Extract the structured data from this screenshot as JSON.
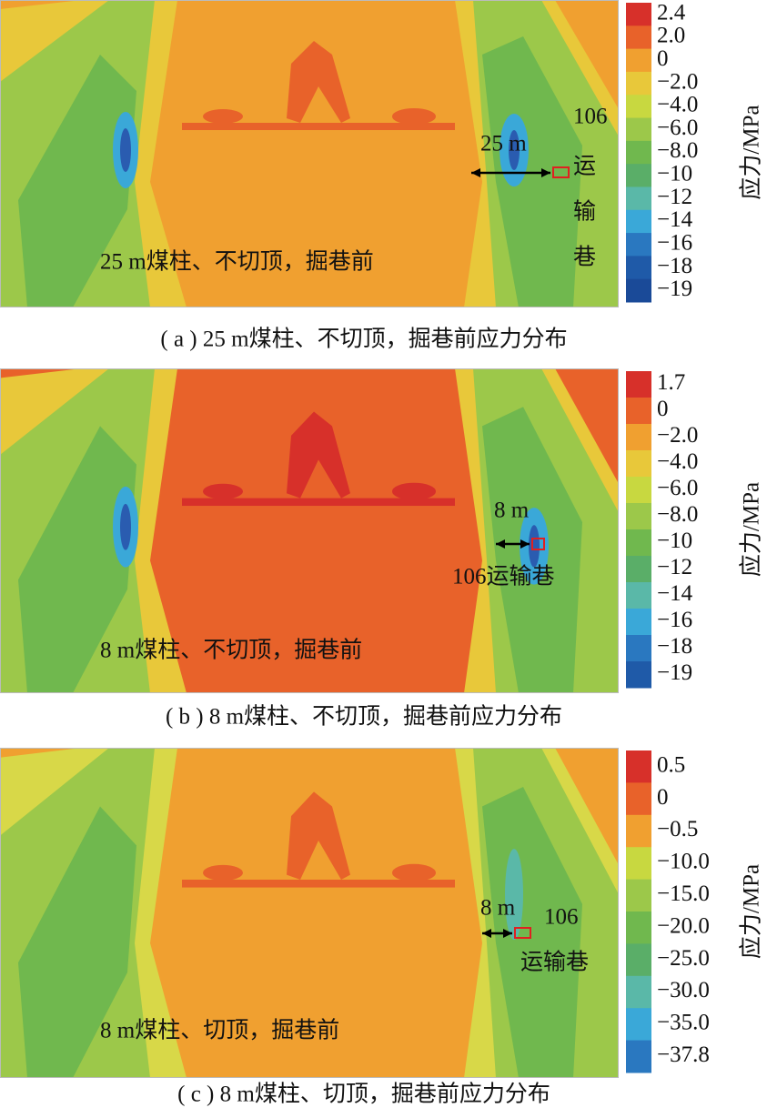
{
  "panels": [
    {
      "annotations": [
        "106",
        "运",
        "输",
        "巷",
        "25 m",
        "25 m煤柱、不切顶，掘巷前"
      ],
      "colorbar": {
        "label": "应力/MPa",
        "ticks": [
          "2.4",
          "2.0",
          "0",
          "−2.0",
          "−4.0",
          "−6.0",
          "−8.0",
          "−10",
          "−12",
          "−14",
          "−16",
          "−18",
          "−19"
        ]
      },
      "caption": "( a ) 25 m煤柱、不切顶，掘巷前应力分布"
    },
    {
      "annotations": [
        "8 m",
        "106运输巷",
        "8 m煤柱、不切顶，掘巷前"
      ],
      "colorbar": {
        "label": "应力/MPa",
        "ticks": [
          "1.7",
          "0",
          "−2.0",
          "−4.0",
          "−6.0",
          "−8.0",
          "−10",
          "−12",
          "−14",
          "−16",
          "−18",
          "−19"
        ]
      },
      "caption": "( b ) 8 m煤柱、不切顶，掘巷前应力分布"
    },
    {
      "annotations": [
        "8 m",
        "106",
        "运输巷",
        "8 m煤柱、切顶，掘巷前"
      ],
      "colorbar": {
        "label": "应力/MPa",
        "ticks": [
          "0.5",
          "0",
          "−0.5",
          "−10.0",
          "−15.0",
          "−20.0",
          "−25.0",
          "−30.0",
          "−35.0",
          "−37.8"
        ]
      },
      "caption": "( c ) 8 m煤柱、切顶，掘巷前应力分布"
    }
  ]
}
